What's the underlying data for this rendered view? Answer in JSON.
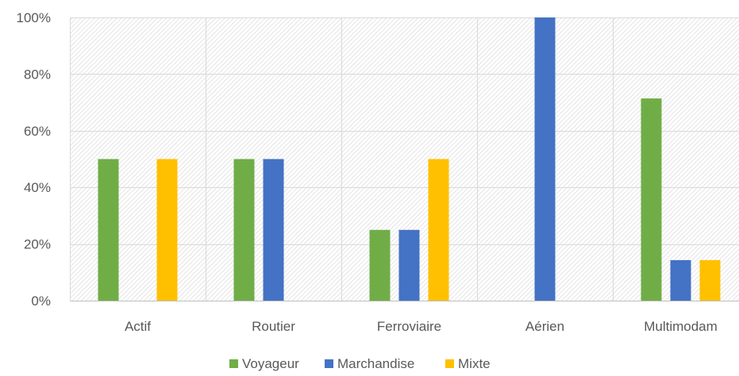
{
  "chart_data": {
    "type": "bar",
    "categories": [
      "Actif",
      "Routier",
      "Ferroviaire",
      "Aérien",
      "Multimodam"
    ],
    "series": [
      {
        "name": "Voyageur",
        "color": "#70AD47",
        "values": [
          0.5,
          0.5,
          0.25,
          0.0,
          0.714
        ]
      },
      {
        "name": "Marchandise",
        "color": "#4472C4",
        "values": [
          0.0,
          0.5,
          0.25,
          1.0,
          0.143
        ]
      },
      {
        "name": "Mixte",
        "color": "#FFC000",
        "values": [
          0.5,
          0.0,
          0.5,
          0.0,
          0.143
        ]
      }
    ],
    "ylim": [
      0,
      1
    ],
    "yticks": [
      0,
      0.2,
      0.4,
      0.6,
      0.8,
      1.0
    ],
    "ytick_labels": [
      "0%",
      "20%",
      "40%",
      "60%",
      "80%",
      "100%"
    ],
    "grid": true,
    "plot_background": "hatched",
    "legend_position": "bottom"
  }
}
